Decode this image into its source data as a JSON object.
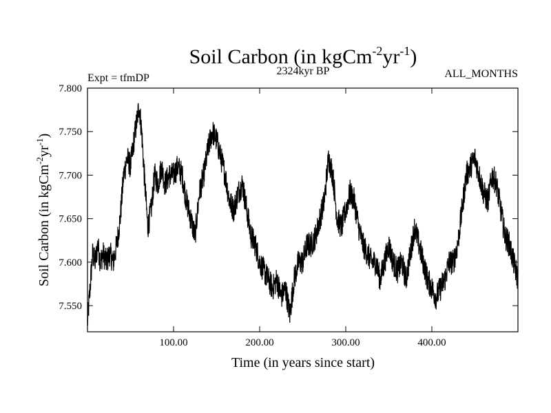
{
  "chart_data": {
    "type": "line",
    "title": {
      "base": "Soil Carbon (in kgCm",
      "sup1": "-2",
      "mid": "yr",
      "sup2": "-1",
      "end": ")"
    },
    "subtitle": "2324kyr BP",
    "left_note": "Expt = tfmDP",
    "right_note": "ALL_MONTHS",
    "xlabel": "Time (in years since start)",
    "ylabel": {
      "base": "Soil Carbon (in kgCm",
      "sup1": "-2",
      "mid": "yr",
      "sup2": "-1",
      "end": ")"
    },
    "xlim": [
      0,
      500
    ],
    "ylim": [
      7.52,
      7.8
    ],
    "x_ticks": [
      {
        "value": 100,
        "label": "100.00"
      },
      {
        "value": 200,
        "label": "200.00"
      },
      {
        "value": 300,
        "label": "300.00"
      },
      {
        "value": 400,
        "label": "400.00"
      }
    ],
    "y_ticks": [
      {
        "value": 7.55,
        "label": "7.550"
      },
      {
        "value": 7.6,
        "label": "7.600"
      },
      {
        "value": 7.65,
        "label": "7.650"
      },
      {
        "value": 7.7,
        "label": "7.700"
      },
      {
        "value": 7.75,
        "label": "7.750"
      },
      {
        "value": 7.8,
        "label": "7.800"
      }
    ],
    "series": [
      {
        "name": "Soil Carbon",
        "color": "#000000",
        "x": [
          0,
          3,
          6,
          9,
          12,
          15,
          18,
          22,
          26,
          30,
          34,
          38,
          42,
          46,
          50,
          54,
          57,
          60,
          63,
          66,
          70,
          74,
          78,
          82,
          86,
          90,
          95,
          100,
          105,
          110,
          115,
          120,
          125,
          130,
          135,
          140,
          145,
          150,
          155,
          160,
          165,
          170,
          175,
          180,
          185,
          190,
          195,
          200,
          205,
          210,
          215,
          220,
          225,
          230,
          235,
          240,
          245,
          250,
          255,
          260,
          265,
          270,
          275,
          280,
          285,
          290,
          295,
          300,
          305,
          310,
          315,
          320,
          325,
          330,
          335,
          340,
          345,
          350,
          355,
          360,
          365,
          370,
          375,
          380,
          385,
          390,
          395,
          400,
          405,
          410,
          415,
          420,
          425,
          430,
          435,
          440,
          445,
          450,
          455,
          460,
          465,
          470,
          475,
          480,
          485,
          490,
          495,
          500
        ],
        "values": [
          7.53,
          7.57,
          7.61,
          7.6,
          7.62,
          7.6,
          7.61,
          7.6,
          7.61,
          7.6,
          7.62,
          7.65,
          7.7,
          7.72,
          7.71,
          7.74,
          7.76,
          7.78,
          7.75,
          7.7,
          7.64,
          7.66,
          7.7,
          7.69,
          7.71,
          7.69,
          7.7,
          7.7,
          7.71,
          7.7,
          7.67,
          7.65,
          7.63,
          7.68,
          7.7,
          7.73,
          7.75,
          7.74,
          7.72,
          7.7,
          7.67,
          7.66,
          7.68,
          7.69,
          7.66,
          7.63,
          7.62,
          7.6,
          7.59,
          7.58,
          7.57,
          7.58,
          7.56,
          7.57,
          7.54,
          7.58,
          7.6,
          7.6,
          7.62,
          7.62,
          7.63,
          7.65,
          7.67,
          7.72,
          7.7,
          7.65,
          7.64,
          7.66,
          7.68,
          7.67,
          7.64,
          7.62,
          7.61,
          7.6,
          7.6,
          7.58,
          7.6,
          7.62,
          7.6,
          7.59,
          7.6,
          7.58,
          7.61,
          7.64,
          7.62,
          7.6,
          7.58,
          7.57,
          7.56,
          7.57,
          7.58,
          7.6,
          7.6,
          7.62,
          7.66,
          7.7,
          7.71,
          7.72,
          7.7,
          7.68,
          7.67,
          7.7,
          7.69,
          7.66,
          7.63,
          7.62,
          7.6,
          7.58
        ]
      }
    ]
  }
}
